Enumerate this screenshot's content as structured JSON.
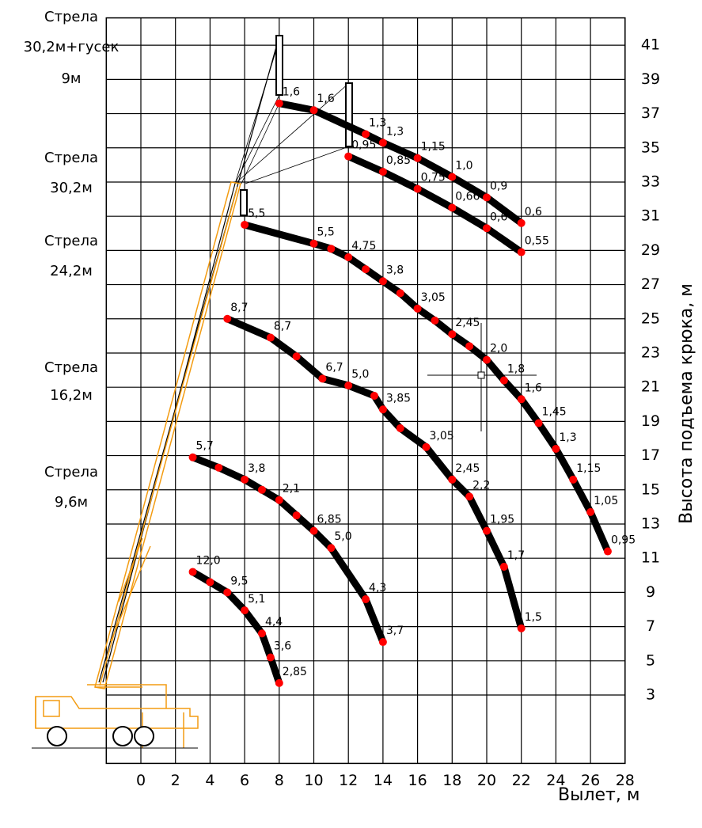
{
  "chart_data": {
    "type": "line",
    "x_label": "Вылет, м",
    "y_label": "Высота подъема крюка, м",
    "xlim": [
      -2,
      28
    ],
    "xticks": [
      0,
      2,
      4,
      6,
      8,
      10,
      12,
      14,
      16,
      18,
      20,
      22,
      24,
      26,
      28
    ],
    "ylim": [
      -1,
      42.6
    ],
    "yticks": [
      3,
      5,
      7,
      9,
      11,
      13,
      15,
      17,
      19,
      21,
      23,
      25,
      27,
      29,
      31,
      33,
      35,
      37,
      39,
      41
    ],
    "grid": true,
    "line_color": "#000000",
    "point_color": "#ff0000",
    "boom_labels": [
      [
        "Стрела",
        "30,2м+гусек",
        "9м"
      ],
      [
        "Стрела",
        "30,2м"
      ],
      [
        "Стрела",
        "24,2м"
      ],
      [
        "Стрела",
        "16,2м"
      ],
      [
        "Стрела",
        "9,6м"
      ]
    ],
    "series": [
      {
        "x": [
          3,
          4,
          5,
          6,
          7,
          7.5,
          8
        ],
        "values": [
          10.2,
          9.6,
          9.0,
          7.95,
          6.6,
          5.2,
          3.7
        ],
        "labels": [
          "12,0",
          null,
          "9,5",
          "5,1",
          "4,4",
          "3,6",
          "2,85"
        ]
      },
      {
        "x": [
          3,
          4.5,
          6,
          7,
          8,
          9,
          10,
          11,
          13,
          14
        ],
        "values": [
          16.9,
          16.3,
          15.6,
          15.0,
          14.4,
          13.5,
          12.6,
          11.6,
          8.6,
          6.1
        ],
        "labels": [
          "5,7",
          null,
          "3,8",
          null,
          "2,1",
          null,
          "6,85",
          "5,0",
          "4,3",
          "3,7"
        ]
      },
      {
        "x": [
          5,
          7.5,
          9,
          10.5,
          12,
          13.5,
          14,
          15,
          16.5,
          18,
          19,
          20,
          21,
          22
        ],
        "values": [
          25.0,
          23.9,
          22.8,
          21.5,
          21.1,
          20.5,
          19.7,
          18.6,
          17.5,
          15.6,
          14.6,
          12.6,
          10.5,
          6.9
        ],
        "labels": [
          "8,7",
          "8,7",
          null,
          "6,7",
          "5,0",
          null,
          "3,85",
          null,
          "3,05",
          "2,45",
          "2,2",
          "1,95",
          "1,7",
          "1,5"
        ]
      },
      {
        "x": [
          6,
          10,
          11,
          12,
          13,
          14,
          15,
          16,
          17,
          18,
          19,
          20,
          21,
          22,
          23,
          24,
          25,
          26,
          27
        ],
        "values": [
          30.5,
          29.4,
          29.1,
          28.6,
          27.9,
          27.2,
          26.5,
          25.6,
          24.9,
          24.1,
          23.4,
          22.6,
          21.4,
          20.3,
          18.9,
          17.4,
          15.6,
          13.7,
          11.4
        ],
        "labels": [
          "5,5",
          "5,5",
          null,
          "4,75",
          null,
          "3,8",
          null,
          "3,05",
          null,
          "2,45",
          null,
          "2,0",
          "1,8",
          "1,6",
          "1,45",
          "1,3",
          "1,15",
          "1,05",
          "0,95"
        ]
      },
      {
        "x": [
          8,
          10,
          13,
          14,
          16,
          18,
          20,
          22
        ],
        "values": [
          37.6,
          37.2,
          35.8,
          35.3,
          34.4,
          33.3,
          32.1,
          30.6
        ],
        "labels": [
          "1,6",
          "1,6",
          "1,3",
          "1,3",
          "1,15",
          "1,0",
          "0,9",
          "0,6"
        ]
      },
      {
        "x": [
          12,
          14,
          16,
          18,
          20,
          22
        ],
        "values": [
          34.5,
          33.6,
          32.6,
          31.5,
          30.3,
          28.9
        ],
        "labels": [
          "0,95",
          "0,85",
          "0,75",
          "0,66",
          "0,6",
          "0,55"
        ]
      }
    ]
  }
}
